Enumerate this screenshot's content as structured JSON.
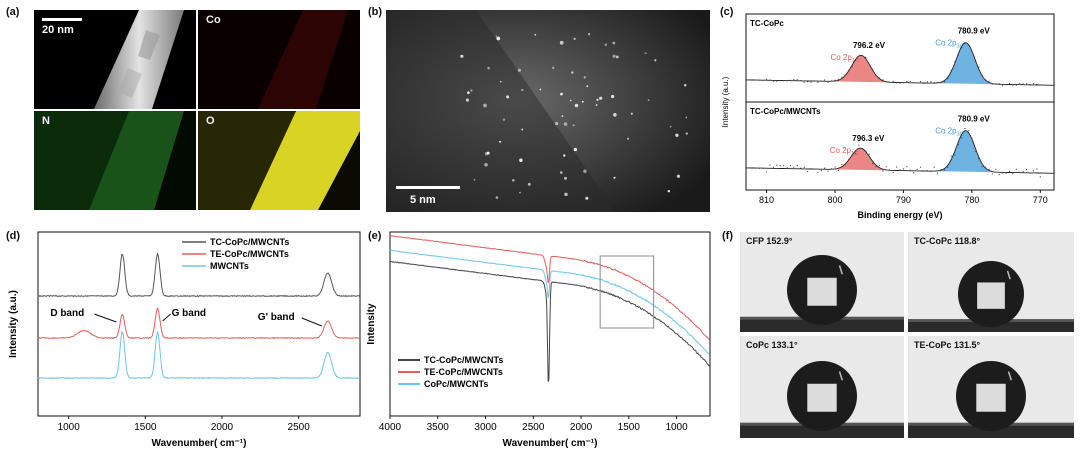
{
  "panels": {
    "a": {
      "label": "(a)",
      "scalebar": "20 nm",
      "tiles": [
        {
          "name": "haadf",
          "label": "",
          "color": "#bdbdbd"
        },
        {
          "name": "co",
          "label": "Co",
          "color": "#8a1010"
        },
        {
          "name": "n",
          "label": "N",
          "color": "#3fb23f"
        },
        {
          "name": "o",
          "label": "O",
          "color": "#e5e02a"
        }
      ]
    },
    "b": {
      "label": "(b)",
      "scalebar": "5 nm"
    },
    "c": {
      "label": "(c)"
    },
    "d": {
      "label": "(d)"
    },
    "e": {
      "label": "(e)"
    },
    "f": {
      "label": "(f)",
      "photos": [
        {
          "label": "CFP 152.9°"
        },
        {
          "label": "TC-CoPc 118.8°"
        },
        {
          "label": "CoPc 133.1°"
        },
        {
          "label": "TE-CoPc 131.5°"
        }
      ]
    }
  },
  "chart_data": [
    {
      "id": "c",
      "type": "line",
      "xlabel": "Binding energy (eV)",
      "ylabel": "Intensity (a.u.)",
      "xlim": [
        813,
        768
      ],
      "x_ticks": [
        810,
        800,
        790,
        780,
        770
      ],
      "subplots": [
        {
          "name": "TC-CoPc",
          "peaks": [
            {
              "label": "Co 2p1/2",
              "label_main": "Co 2p",
              "label_sub": "1/2",
              "position": 796.2,
              "value_label": "796.2 eV",
              "color": "#e35d5d",
              "height": 0.55
            },
            {
              "label": "Co 2p3/2",
              "label_main": "Co 2p",
              "label_sub": "3/2",
              "position": 780.9,
              "value_label": "780.9 eV",
              "color": "#3d9ad8",
              "height": 0.85
            }
          ]
        },
        {
          "name": "TC-CoPc/MWCNTs",
          "peaks": [
            {
              "label": "Co 2p1/2",
              "label_main": "Co 2p",
              "label_sub": "1/2",
              "position": 796.3,
              "value_label": "796.3 eV",
              "color": "#e35d5d",
              "height": 0.45
            },
            {
              "label": "Co 2p3/2",
              "label_main": "Co 2p",
              "label_sub": "3/2",
              "position": 780.9,
              "value_label": "780.9 eV",
              "color": "#3d9ad8",
              "height": 0.85
            }
          ]
        }
      ]
    },
    {
      "id": "d",
      "type": "line",
      "xlabel": "Wavenumber( cm⁻¹)",
      "ylabel": "Intensity (a.u.)",
      "xlim": [
        800,
        2900
      ],
      "x_ticks": [
        1000,
        1500,
        2000,
        2500
      ],
      "series": [
        {
          "name": "TC-CoPc/MWCNTs",
          "color": "#555555",
          "D": 1.0,
          "G": 1.0,
          "G2": 0.55,
          "bump1100": 0.0
        },
        {
          "name": "TE-CoPc/MWCNTs",
          "color": "#e35d5d",
          "D": 0.55,
          "G": 0.7,
          "G2": 0.4,
          "bump1100": 0.18
        },
        {
          "name": "MWCNTs",
          "color": "#6cc5ea",
          "D": 1.0,
          "G": 1.0,
          "G2": 0.55,
          "bump1100": 0.0
        }
      ],
      "annotations": [
        {
          "text": "D band",
          "x": 1350
        },
        {
          "text": "G band",
          "x": 1580
        },
        {
          "text": "G' band",
          "x": 2690
        }
      ]
    },
    {
      "id": "e",
      "type": "line",
      "xlabel": "Wavenumber( cm⁻¹)",
      "ylabel": "Intensity",
      "xlim": [
        4000,
        650
      ],
      "x_ticks": [
        4000,
        3500,
        3000,
        2500,
        2000,
        1500,
        1000
      ],
      "series": [
        {
          "name": "TC-CoPc/MWCNTs",
          "color": "#444444",
          "start": 0.84,
          "dip": 0.55
        },
        {
          "name": "TE-CoPc/MWCNTs",
          "color": "#e35d5d",
          "start": 0.98,
          "dip": 0.12
        },
        {
          "name": "CoPc/MWCNTs",
          "color": "#6cc5ea",
          "start": 0.9,
          "dip": 0.12
        }
      ],
      "inset_box": {
        "x0": 1800,
        "x1": 1240
      }
    }
  ]
}
